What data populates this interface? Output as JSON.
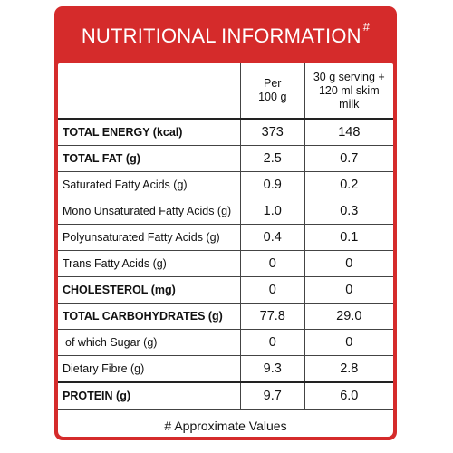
{
  "title": {
    "text": "NUTRITIONAL INFORMATION",
    "mark": "#"
  },
  "columns": {
    "per_100g": "Per 100 g",
    "serving": "30 g serving + 120 ml skim milk"
  },
  "rows": [
    {
      "label": "TOTAL ENERGY (kcal)",
      "per100g": "373",
      "serving": "148"
    },
    {
      "label": "TOTAL FAT (g)",
      "per100g": "2.5",
      "serving": "0.7"
    },
    {
      "label": "Saturated Fatty Acids (g)",
      "per100g": "0.9",
      "serving": "0.2"
    },
    {
      "label": "Mono Unsaturated Fatty Acids (g)",
      "per100g": "1.0",
      "serving": "0.3"
    },
    {
      "label": "Polyunsaturated Fatty Acids (g)",
      "per100g": "0.4",
      "serving": "0.1"
    },
    {
      "label": "Trans Fatty Acids (g)",
      "per100g": "0",
      "serving": "0"
    },
    {
      "label": "CHOLESTEROL (mg)",
      "per100g": "0",
      "serving": "0"
    },
    {
      "label": "TOTAL CARBOHYDRATES (g)",
      "per100g": "77.8",
      "serving": "29.0"
    },
    {
      "label": "of which Sugar (g)",
      "per100g": "0",
      "serving": "0"
    },
    {
      "label": "Dietary Fibre (g)",
      "per100g": "9.3",
      "serving": "2.8"
    },
    {
      "label": "PROTEIN (g)",
      "per100g": "9.7",
      "serving": "6.0"
    }
  ],
  "footnote": "# Approximate Values",
  "colors": {
    "brand_red": "#d52b2b",
    "text": "#111111"
  }
}
